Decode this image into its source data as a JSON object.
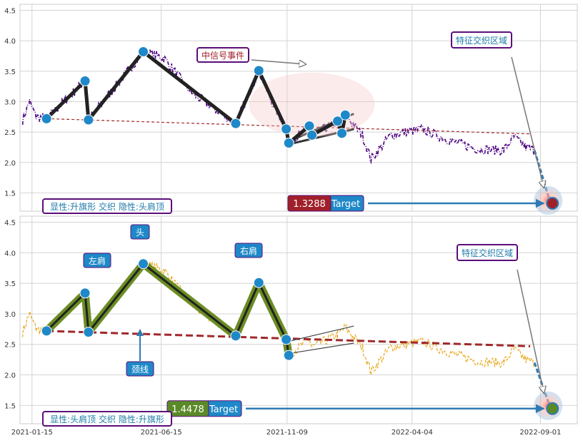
{
  "chart_data": [
    {
      "type": "line",
      "title": "",
      "xlabel": "",
      "ylabel": "",
      "ylim": [
        1.2,
        4.6
      ],
      "yticks": [
        "1.5",
        "2.0",
        "2.5",
        "3.0",
        "3.5",
        "4.0",
        "4.5"
      ],
      "yticks_values": [
        1.5,
        2.0,
        2.5,
        3.0,
        3.5,
        4.0,
        4.5
      ],
      "grid": true,
      "price_color": "#4b0082",
      "pattern_points": [
        {
          "x": "2021-02-01",
          "y": 2.72
        },
        {
          "x": "2021-03-18",
          "y": 3.34
        },
        {
          "x": "2021-03-22",
          "y": 2.7
        },
        {
          "x": "2021-05-25",
          "y": 3.82
        },
        {
          "x": "2021-09-10",
          "y": 2.64
        },
        {
          "x": "2021-10-07",
          "y": 3.51
        },
        {
          "x": "2021-11-08",
          "y": 2.55
        },
        {
          "x": "2021-11-11",
          "y": 2.32
        },
        {
          "x": "2021-12-05",
          "y": 2.6
        },
        {
          "x": "2021-12-08",
          "y": 2.45
        },
        {
          "x": "2022-01-07",
          "y": 2.68
        },
        {
          "x": "2022-01-12",
          "y": 2.48
        },
        {
          "x": "2022-01-16",
          "y": 2.78
        }
      ],
      "neckline": {
        "x": [
          "2021-02-01",
          "2022-08-20"
        ],
        "y": [
          2.72,
          2.47
        ]
      },
      "flag_upper": {
        "x": [
          "2021-11-11",
          "2022-01-26"
        ],
        "y": [
          2.35,
          2.8
        ]
      },
      "flag_lower": {
        "x": [
          "2021-11-11",
          "2022-01-26"
        ],
        "y": [
          2.3,
          2.55
        ]
      },
      "signal_label": "中信号事件",
      "signal_region_label": "特征交织区域",
      "target_value_label": "1.3288",
      "target_label": "Target",
      "target_y": 1.3288,
      "pattern_label": "显性:升旗形 交织 隐性:头肩顶",
      "accent_colors": {
        "value_box": "#a0202a",
        "target_box": "#1e88c8",
        "border": "#5b0e7a",
        "arrow": "#2e7bb4"
      }
    },
    {
      "type": "line",
      "title": "",
      "xlabel": "",
      "ylabel": "",
      "ylim": [
        1.2,
        4.6
      ],
      "yticks": [
        "1.5",
        "2.0",
        "2.5",
        "3.0",
        "3.5",
        "4.0",
        "4.5"
      ],
      "yticks_values": [
        1.5,
        2.0,
        2.5,
        3.0,
        3.5,
        4.0,
        4.5
      ],
      "x_ticks": [
        "2021-01-15",
        "2021-06-15",
        "2021-11-09",
        "2022-04-04",
        "2022-09-01"
      ],
      "grid": true,
      "price_color": "#e8a820",
      "pattern_points": [
        {
          "x": "2021-02-01",
          "y": 2.72
        },
        {
          "x": "2021-03-18",
          "y": 3.34
        },
        {
          "x": "2021-03-22",
          "y": 2.7
        },
        {
          "x": "2021-05-25",
          "y": 3.82
        },
        {
          "x": "2021-09-10",
          "y": 2.64
        },
        {
          "x": "2021-10-07",
          "y": 3.51
        },
        {
          "x": "2021-11-08",
          "y": 2.58
        },
        {
          "x": "2021-11-11",
          "y": 2.32
        }
      ],
      "neckline": {
        "x": [
          "2021-02-01",
          "2022-08-20"
        ],
        "y": [
          2.72,
          2.47
        ]
      },
      "flag_upper": {
        "x": [
          "2021-11-11",
          "2022-01-26"
        ],
        "y": [
          2.55,
          2.8
        ]
      },
      "flag_lower": {
        "x": [
          "2021-11-11",
          "2022-01-26"
        ],
        "y": [
          2.35,
          2.52
        ]
      },
      "labels": {
        "left_shoulder": "左肩",
        "head": "头",
        "right_shoulder": "右肩",
        "neckline": "颈线"
      },
      "signal_region_label": "特征交织区域",
      "target_value_label": "1.4478",
      "target_label": "Target",
      "target_y": 1.4478,
      "pattern_label": "显性:头肩顶 交织 隐性:升旗形",
      "accent_colors": {
        "value_box": "#5a8a28",
        "target_box": "#1e88c8",
        "border": "#5b0e7a",
        "neckline": "#a0282a",
        "pattern_fill": "#6b8e23"
      }
    }
  ]
}
